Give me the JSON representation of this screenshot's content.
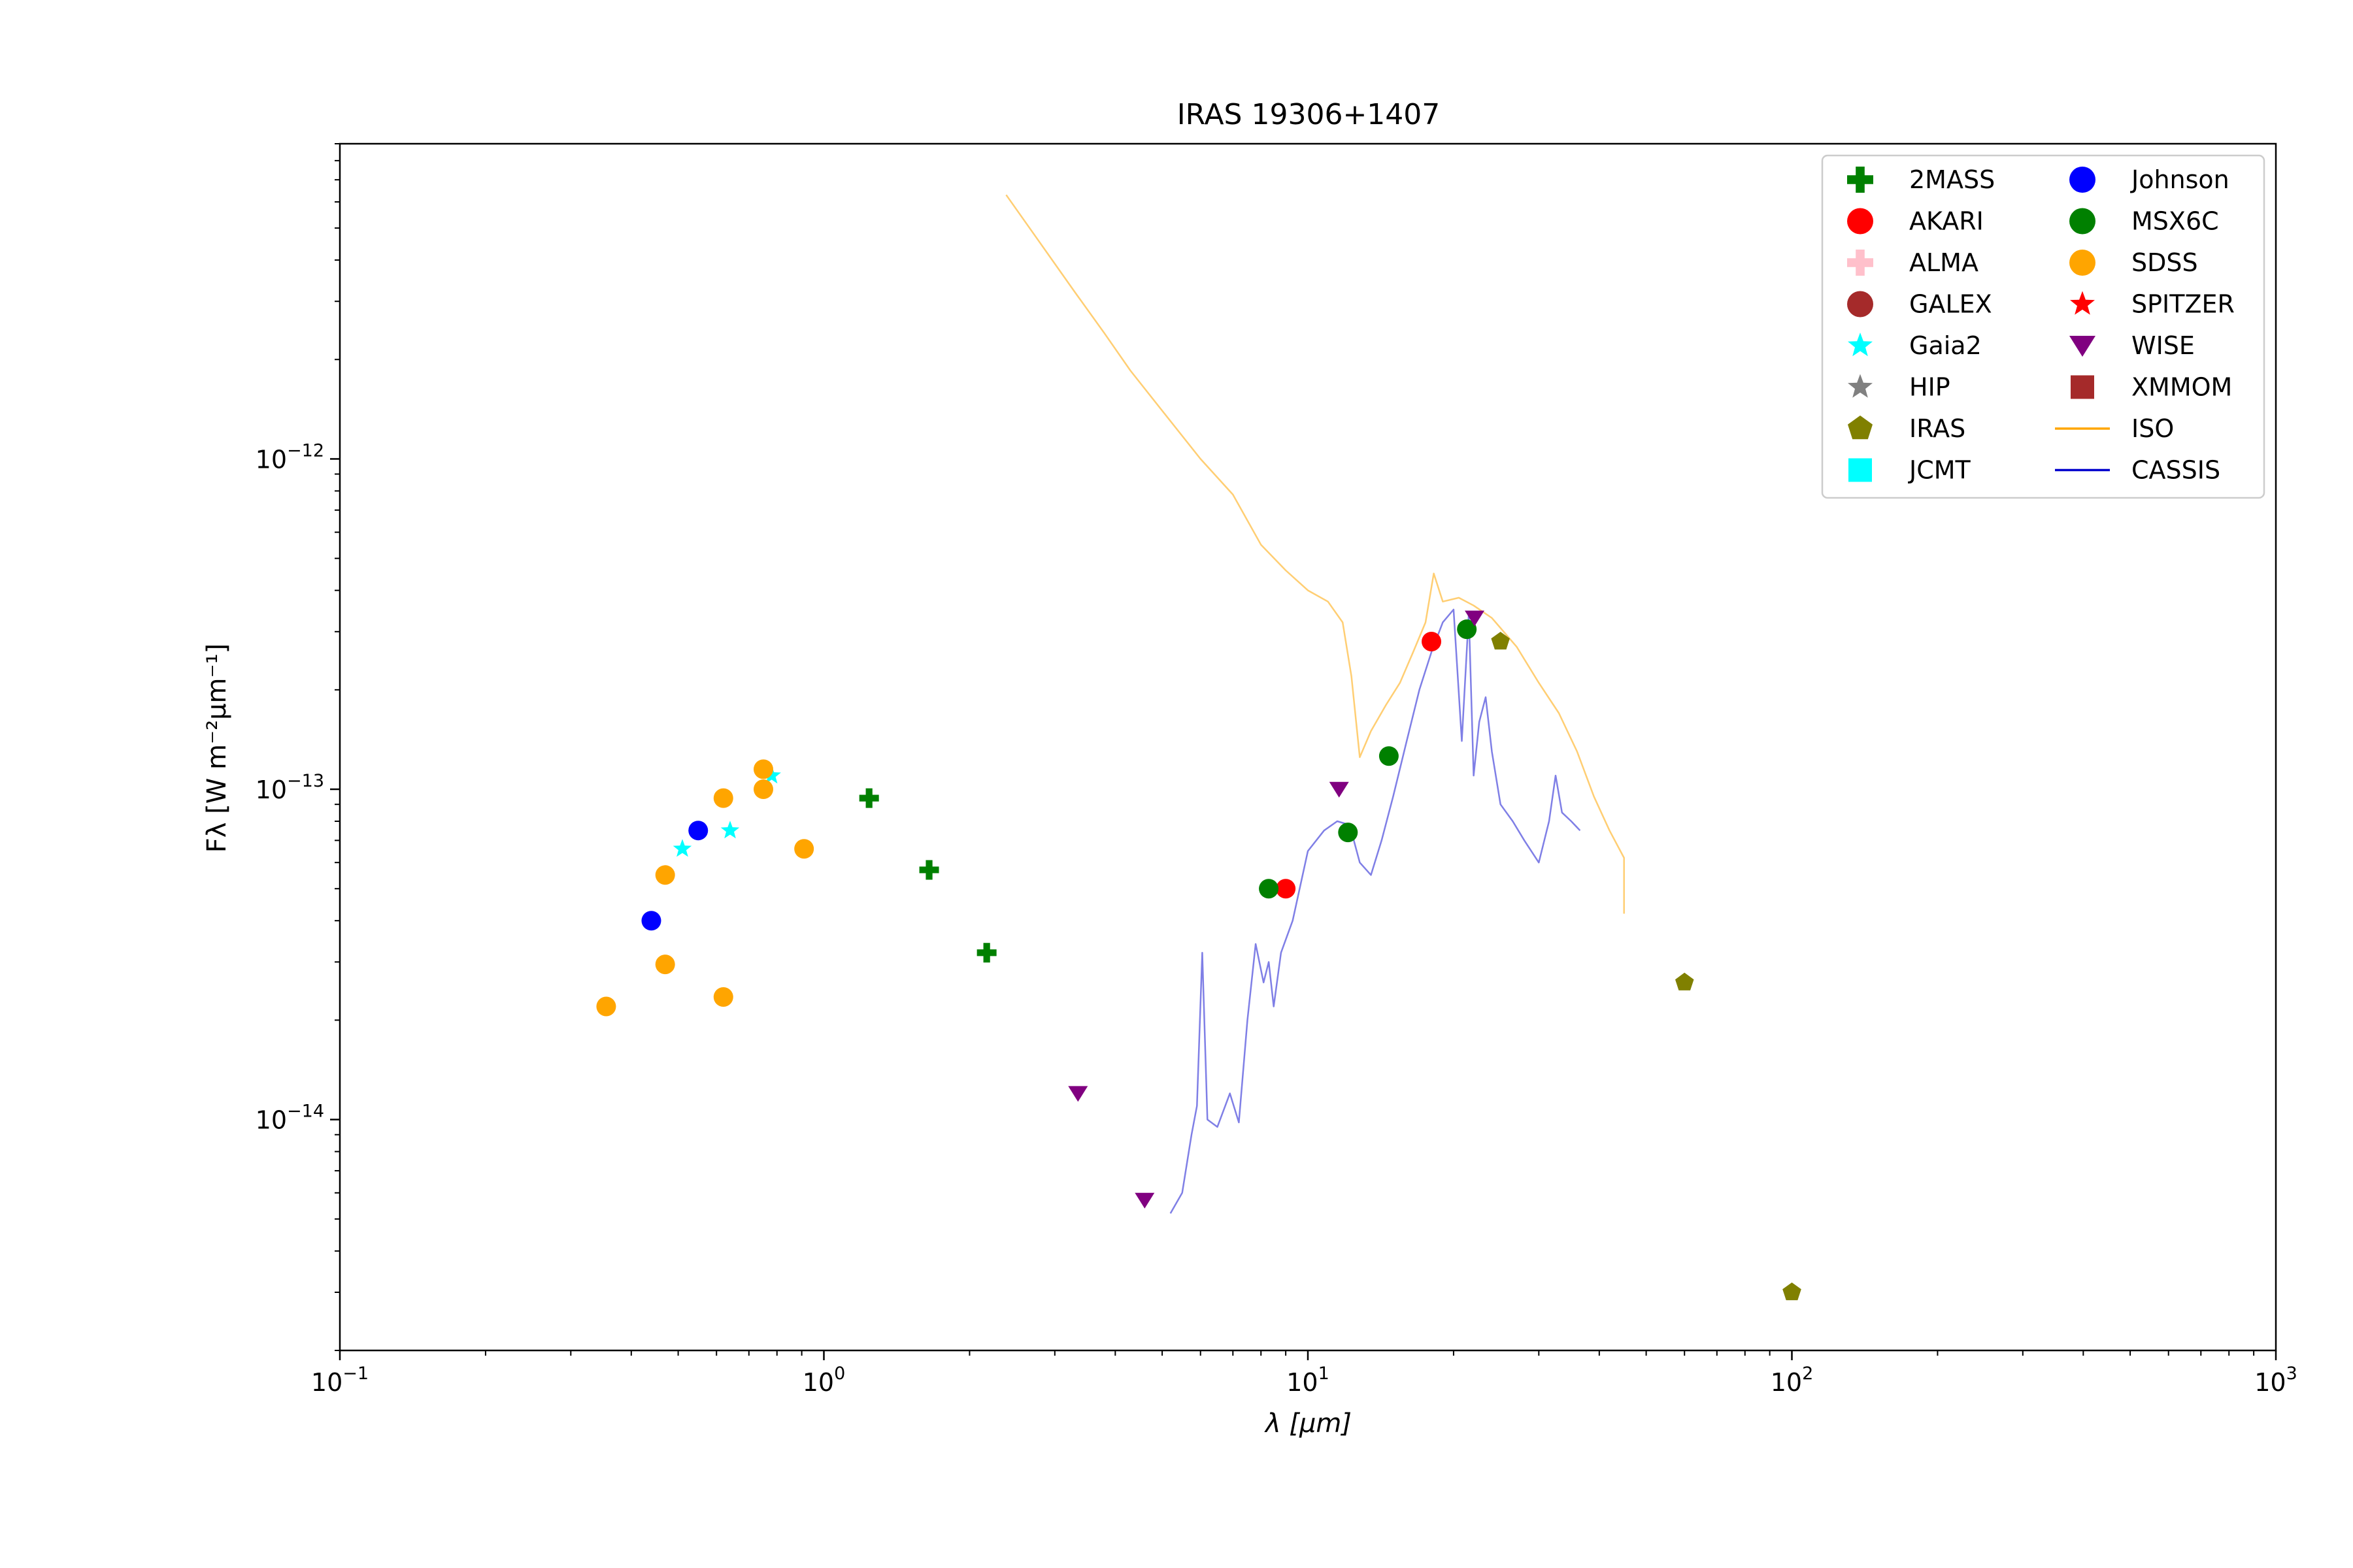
{
  "chart_data": {
    "type": "scatter",
    "title": "IRAS 19306+1407",
    "xlabel": "λ [μm]",
    "ylabel": "Fλ [W m⁻²μm⁻¹]",
    "x_scale": "log",
    "y_scale": "log",
    "xlim": [
      0.1,
      1000
    ],
    "ylim": [
      2e-15,
      9e-12
    ],
    "x_ticks": [
      {
        "value": 0.1,
        "base": "10",
        "exp": "−1"
      },
      {
        "value": 1,
        "base": "10",
        "exp": "0"
      },
      {
        "value": 10,
        "base": "10",
        "exp": "1"
      },
      {
        "value": 100,
        "base": "10",
        "exp": "2"
      },
      {
        "value": 1000,
        "base": "10",
        "exp": "3"
      }
    ],
    "y_ticks": [
      {
        "value": 1e-14,
        "base": "10",
        "exp": "−14"
      },
      {
        "value": 1e-13,
        "base": "10",
        "exp": "−13"
      },
      {
        "value": 1e-12,
        "base": "10",
        "exp": "−12"
      }
    ],
    "grid": false,
    "legend": {
      "position": "top-right",
      "columns": [
        [
          "2MASS",
          "AKARI",
          "ALMA",
          "GALEX",
          "Gaia2",
          "HIP",
          "IRAS",
          "JCMT"
        ],
        [
          "Johnson",
          "MSX6C",
          "SDSS",
          "SPITZER",
          "WISE",
          "XMMOM",
          "ISO",
          "CASSIS"
        ]
      ]
    },
    "series": [
      {
        "name": "2MASS",
        "marker": "plus",
        "color": "#008000",
        "points": [
          [
            1.24,
            9.4e-14
          ],
          [
            1.65,
            5.7e-14
          ],
          [
            2.17,
            3.2e-14
          ]
        ]
      },
      {
        "name": "AKARI",
        "marker": "circle",
        "color": "#ff0000",
        "points": [
          [
            9.0,
            5e-14
          ],
          [
            18.0,
            2.8e-13
          ]
        ]
      },
      {
        "name": "ALMA",
        "marker": "plus",
        "color": "#ffc0cb",
        "points": []
      },
      {
        "name": "GALEX",
        "marker": "circle",
        "color": "#a52a2a",
        "points": []
      },
      {
        "name": "Gaia2",
        "marker": "star",
        "color": "#00ffff",
        "points": [
          [
            0.51,
            6.6e-14
          ],
          [
            0.64,
            7.5e-14
          ],
          [
            0.78,
            1.1e-13
          ]
        ]
      },
      {
        "name": "HIP",
        "marker": "star",
        "color": "#808080",
        "points": []
      },
      {
        "name": "IRAS",
        "marker": "pentagon",
        "color": "#808000",
        "points": [
          [
            25,
            2.8e-13
          ],
          [
            60,
            2.6e-14
          ],
          [
            100,
            3e-15
          ]
        ]
      },
      {
        "name": "JCMT",
        "marker": "square",
        "color": "#00ffff",
        "points": []
      },
      {
        "name": "Johnson",
        "marker": "circle",
        "color": "#0000ff",
        "points": [
          [
            0.44,
            4e-14
          ],
          [
            0.55,
            7.5e-14
          ]
        ]
      },
      {
        "name": "MSX6C",
        "marker": "circle",
        "color": "#008000",
        "points": [
          [
            8.3,
            5e-14
          ],
          [
            12.1,
            7.4e-14
          ],
          [
            14.7,
            1.26e-13
          ],
          [
            21.3,
            3.05e-13
          ]
        ]
      },
      {
        "name": "SDSS",
        "marker": "circle",
        "color": "#ffa500",
        "points": [
          [
            0.355,
            2.2e-14
          ],
          [
            0.47,
            2.95e-14
          ],
          [
            0.47,
            5.5e-14
          ],
          [
            0.62,
            2.35e-14
          ],
          [
            0.62,
            9.4e-14
          ],
          [
            0.75,
            1e-13
          ],
          [
            0.75,
            1.15e-13
          ],
          [
            0.91,
            6.6e-14
          ]
        ]
      },
      {
        "name": "SPITZER",
        "marker": "star",
        "color": "#ff0000",
        "points": []
      },
      {
        "name": "WISE",
        "marker": "triangle-down",
        "color": "#800080",
        "points": [
          [
            3.35,
            1.2e-14
          ],
          [
            4.6,
            5.7e-15
          ],
          [
            11.6,
            1e-13
          ],
          [
            22.1,
            3.3e-13
          ]
        ]
      },
      {
        "name": "XMMOM",
        "marker": "square",
        "color": "#a52a2a",
        "points": []
      },
      {
        "name": "ISO",
        "marker": "line",
        "color": "#ffa500",
        "points": [
          [
            2.38,
            6.3e-12
          ],
          [
            2.8,
            4.5e-12
          ],
          [
            3.3,
            3.2e-12
          ],
          [
            3.8,
            2.4e-12
          ],
          [
            4.3,
            1.85e-12
          ],
          [
            5.0,
            1.4e-12
          ],
          [
            6.0,
            1e-12
          ],
          [
            7.0,
            7.8e-13
          ],
          [
            8.0,
            5.5e-13
          ],
          [
            9.0,
            4.6e-13
          ],
          [
            10.0,
            4e-13
          ],
          [
            11.0,
            3.7e-13
          ],
          [
            11.8,
            3.2e-13
          ],
          [
            12.3,
            2.2e-13
          ],
          [
            12.8,
            1.25e-13
          ],
          [
            13.5,
            1.5e-13
          ],
          [
            14.5,
            1.8e-13
          ],
          [
            15.5,
            2.1e-13
          ],
          [
            16.5,
            2.6e-13
          ],
          [
            17.5,
            3.2e-13
          ],
          [
            18.2,
            4.5e-13
          ],
          [
            19.0,
            3.7e-13
          ],
          [
            20.5,
            3.8e-13
          ],
          [
            22.0,
            3.6e-13
          ],
          [
            24.0,
            3.3e-13
          ],
          [
            27.0,
            2.7e-13
          ],
          [
            30.0,
            2.1e-13
          ],
          [
            33.0,
            1.7e-13
          ],
          [
            36.0,
            1.3e-13
          ],
          [
            39.0,
            9.5e-14
          ],
          [
            42.0,
            7.5e-14
          ],
          [
            45.0,
            6.2e-14
          ],
          [
            45.0,
            4.2e-14
          ]
        ]
      },
      {
        "name": "CASSIS",
        "marker": "line",
        "color": "#0000cd",
        "points": [
          [
            5.2,
            5.2e-15
          ],
          [
            5.5,
            6e-15
          ],
          [
            5.75,
            9e-15
          ],
          [
            5.9,
            1.1e-14
          ],
          [
            6.05,
            3.2e-14
          ],
          [
            6.2,
            1e-14
          ],
          [
            6.5,
            9.5e-15
          ],
          [
            6.9,
            1.2e-14
          ],
          [
            7.2,
            9.8e-15
          ],
          [
            7.5,
            2e-14
          ],
          [
            7.8,
            3.4e-14
          ],
          [
            8.1,
            2.6e-14
          ],
          [
            8.3,
            3e-14
          ],
          [
            8.5,
            2.2e-14
          ],
          [
            8.8,
            3.2e-14
          ],
          [
            9.3,
            4e-14
          ],
          [
            10.0,
            6.5e-14
          ],
          [
            10.8,
            7.5e-14
          ],
          [
            11.5,
            8e-14
          ],
          [
            12.2,
            7.8e-14
          ],
          [
            12.8,
            6e-14
          ],
          [
            13.5,
            5.5e-14
          ],
          [
            14.2,
            7e-14
          ],
          [
            15.0,
            9.5e-14
          ],
          [
            16.0,
            1.4e-13
          ],
          [
            17.0,
            2e-13
          ],
          [
            18.0,
            2.6e-13
          ],
          [
            19.0,
            3.2e-13
          ],
          [
            20.0,
            3.5e-13
          ],
          [
            20.8,
            1.4e-13
          ],
          [
            21.5,
            3.4e-13
          ],
          [
            22.0,
            1.1e-13
          ],
          [
            22.6,
            1.6e-13
          ],
          [
            23.3,
            1.9e-13
          ],
          [
            24.0,
            1.3e-13
          ],
          [
            25.0,
            9e-14
          ],
          [
            26.5,
            8e-14
          ],
          [
            28.0,
            7e-14
          ],
          [
            30.0,
            6e-14
          ],
          [
            31.5,
            8e-14
          ],
          [
            32.5,
            1.1e-13
          ],
          [
            33.5,
            8.5e-14
          ],
          [
            35.0,
            8e-14
          ],
          [
            36.5,
            7.5e-14
          ]
        ]
      }
    ]
  }
}
